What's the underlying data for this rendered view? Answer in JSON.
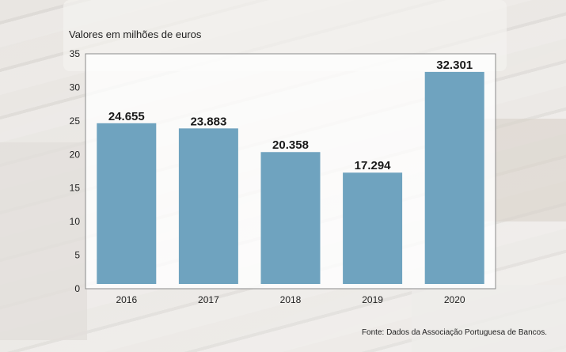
{
  "chart_data": {
    "type": "bar",
    "subtitle": "Valores em milhões de euros",
    "categories": [
      "2016",
      "2017",
      "2018",
      "2019",
      "2020"
    ],
    "values": [
      24.655,
      23.883,
      20.358,
      17.294,
      32.301
    ],
    "value_labels": [
      "24.655",
      "23.883",
      "20.358",
      "17.294",
      "32.301"
    ],
    "y_ticks": [
      0,
      5,
      10,
      15,
      20,
      25,
      30,
      35
    ],
    "ylim": [
      0,
      35
    ],
    "grid": false,
    "bar_color": "#6fa3bf",
    "source": "Fonte: Dados da Associação Portuguesa de Bancos."
  }
}
